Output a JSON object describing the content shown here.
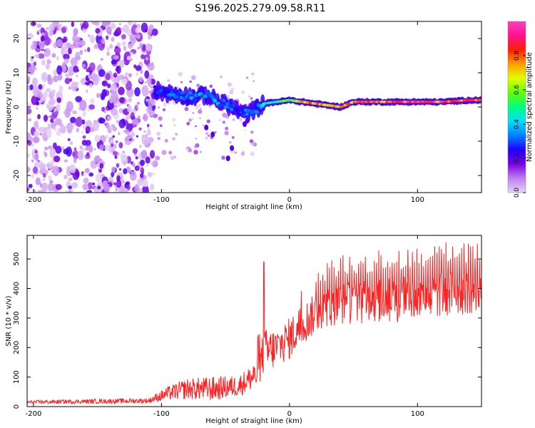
{
  "title": "S196.2025.279.09.58.R11",
  "chart_data": [
    {
      "type": "heatmap",
      "xlabel": "Height of straight line (km)",
      "ylabel": "Frequency (Hz)",
      "xlim": [
        -205,
        150
      ],
      "ylim": [
        -25,
        25
      ],
      "xticks": [
        -200,
        -100,
        0,
        100
      ],
      "yticks": [
        -20,
        -10,
        0,
        10,
        20
      ],
      "colorbar": {
        "label": "Normalized spectral amplitude",
        "range": [
          0,
          1
        ],
        "ticks": [
          0.0,
          0.2,
          0.4,
          0.6,
          0.8
        ],
        "tick_labels": [
          "0.0",
          "0.2",
          "0.4",
          "0.6",
          "0.8"
        ],
        "colormap": [
          "#e8d4f5",
          "#c080f0",
          "#7a00e0",
          "#2000ff",
          "#0080ff",
          "#00e0ff",
          "#00ff80",
          "#60ff00",
          "#e0ff00",
          "#ffa000",
          "#ff2000",
          "#ff1090",
          "#ff40c0"
        ]
      },
      "noise_region": {
        "x_from": -205,
        "x_to": -105,
        "amplitude": 0.1
      },
      "ridge": [
        {
          "x": -105,
          "freq": 5,
          "amp": 0.25
        },
        {
          "x": -95,
          "freq": 4,
          "amp": 0.3
        },
        {
          "x": -85,
          "freq": 3.5,
          "amp": 0.3
        },
        {
          "x": -75,
          "freq": 3,
          "amp": 0.35
        },
        {
          "x": -65,
          "freq": 3.5,
          "amp": 0.35
        },
        {
          "x": -55,
          "freq": 1.5,
          "amp": 0.35
        },
        {
          "x": -45,
          "freq": 0,
          "amp": 0.3
        },
        {
          "x": -35,
          "freq": -2,
          "amp": 0.3
        },
        {
          "x": -28,
          "freq": -1,
          "amp": 0.35
        },
        {
          "x": -20,
          "freq": 1,
          "amp": 0.45
        },
        {
          "x": -10,
          "freq": 1.5,
          "amp": 0.5
        },
        {
          "x": 0,
          "freq": 2,
          "amp": 0.6
        },
        {
          "x": 10,
          "freq": 1.5,
          "amp": 0.7
        },
        {
          "x": 20,
          "freq": 1,
          "amp": 0.75
        },
        {
          "x": 30,
          "freq": 0.5,
          "amp": 0.75
        },
        {
          "x": 40,
          "freq": 0,
          "amp": 0.75
        },
        {
          "x": 50,
          "freq": 1.5,
          "amp": 0.8
        },
        {
          "x": 60,
          "freq": 1.5,
          "amp": 0.85
        },
        {
          "x": 80,
          "freq": 1.5,
          "amp": 0.85
        },
        {
          "x": 100,
          "freq": 1.5,
          "amp": 0.85
        },
        {
          "x": 120,
          "freq": 1.5,
          "amp": 0.85
        },
        {
          "x": 140,
          "freq": 2,
          "amp": 0.85
        },
        {
          "x": 150,
          "freq": 2,
          "amp": 0.85
        }
      ]
    },
    {
      "type": "line",
      "xlabel": "Height of straight line (km)",
      "ylabel": "SNR (10 * v/v)",
      "xlim": [
        -205,
        150
      ],
      "ylim": [
        0,
        580
      ],
      "xticks": [
        -200,
        -100,
        0,
        100
      ],
      "yticks": [
        0,
        100,
        200,
        300,
        400,
        500
      ],
      "color": "#ff2020",
      "series": [
        {
          "name": "SNR",
          "envelope": [
            {
              "x": -205,
              "mean": 15,
              "spread": 10
            },
            {
              "x": -110,
              "mean": 20,
              "spread": 15
            },
            {
              "x": -95,
              "mean": 45,
              "spread": 40
            },
            {
              "x": -80,
              "mean": 60,
              "spread": 60
            },
            {
              "x": -60,
              "mean": 60,
              "spread": 70
            },
            {
              "x": -40,
              "mean": 70,
              "spread": 60
            },
            {
              "x": -25,
              "mean": 110,
              "spread": 80
            },
            {
              "x": -20,
              "mean": 180,
              "spread": 140
            },
            {
              "x": -10,
              "mean": 200,
              "spread": 110
            },
            {
              "x": 0,
              "mean": 230,
              "spread": 120
            },
            {
              "x": 10,
              "mean": 280,
              "spread": 120
            },
            {
              "x": 25,
              "mean": 330,
              "spread": 110
            },
            {
              "x": 40,
              "mean": 350,
              "spread": 120
            },
            {
              "x": 60,
              "mean": 355,
              "spread": 120
            },
            {
              "x": 80,
              "mean": 360,
              "spread": 130
            },
            {
              "x": 100,
              "mean": 365,
              "spread": 130
            },
            {
              "x": 120,
              "mean": 380,
              "spread": 130
            },
            {
              "x": 150,
              "mean": 390,
              "spread": 120
            }
          ]
        }
      ]
    }
  ]
}
